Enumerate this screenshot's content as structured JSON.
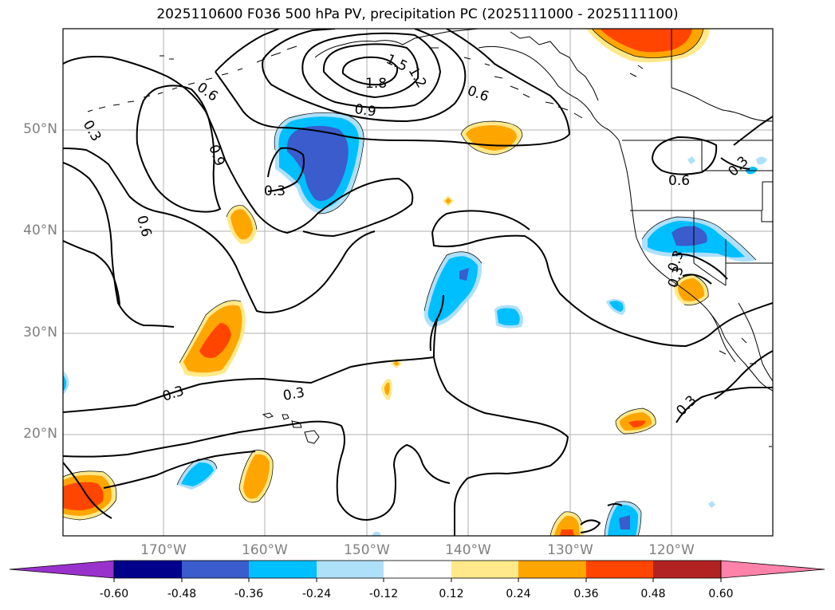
{
  "title": "2025110600 F036 500 hPa PV, precipitation PC (2025111000 - 2025111100)",
  "lat_labels": [
    "50°N",
    "40°N",
    "30°N",
    "20°N"
  ],
  "lon_labels": [
    "170°W",
    "160°W",
    "150°W",
    "140°W",
    "130°W",
    "120°W"
  ],
  "contour_labels": [
    "1.5",
    "1.2",
    "1.8",
    "0.9",
    "0.6",
    "0.6",
    "0.9",
    "0.6",
    "0.3",
    "0.3",
    "0.6",
    "0.3",
    "0.3",
    "0.3",
    "0.3",
    "0.3",
    "0.3"
  ],
  "colorbar": {
    "ticks": [
      "-0.60",
      "-0.48",
      "-0.36",
      "-0.24",
      "-0.12",
      "0.12",
      "0.24",
      "0.36",
      "0.48",
      "0.60"
    ],
    "colors": [
      "#9932cc",
      "#00008b",
      "#3a5ccc",
      "#00bfff",
      "#afe0fa",
      "#ffffff",
      "#ffe98a",
      "#ffa500",
      "#ff4500",
      "#b22222",
      "#ff82ab"
    ]
  }
}
